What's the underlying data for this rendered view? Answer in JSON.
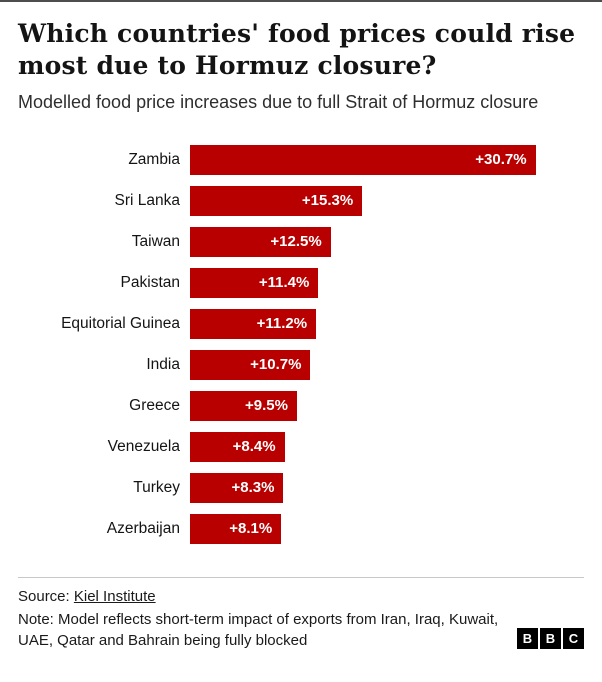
{
  "header": {
    "title": "Which countries' food prices could rise most due to Hormuz closure?",
    "subtitle": "Modelled food price increases due to full Strait of Hormuz closure"
  },
  "chart_data": {
    "type": "bar",
    "orientation": "horizontal",
    "title": "Which countries' food prices could rise most due to Hormuz closure?",
    "subtitle": "Modelled food price increases due to full Strait of Hormuz closure",
    "categories": [
      "Zambia",
      "Sri Lanka",
      "Taiwan",
      "Pakistan",
      "Equitorial Guinea",
      "India",
      "Greece",
      "Venezuela",
      "Turkey",
      "Azerbaijan"
    ],
    "values": [
      30.7,
      15.3,
      12.5,
      11.4,
      11.2,
      10.7,
      9.5,
      8.4,
      8.3,
      8.1
    ],
    "value_labels": [
      "+30.7%",
      "+15.3%",
      "+12.5%",
      "+11.4%",
      "+11.2%",
      "+10.7%",
      "+9.5%",
      "+8.4%",
      "+8.3%",
      "+8.1%"
    ],
    "xlim": [
      0,
      35
    ],
    "bar_color": "#b80000",
    "grid": false,
    "legend": false,
    "xlabel": "",
    "ylabel": ""
  },
  "footer": {
    "source_prefix": "Source: ",
    "source_link": "Kiel Institute",
    "note": "Note: Model reflects short-term impact of exports from Iran, Iraq, Kuwait, UAE, Qatar and Bahrain being fully blocked",
    "logo": [
      "B",
      "B",
      "C"
    ]
  }
}
